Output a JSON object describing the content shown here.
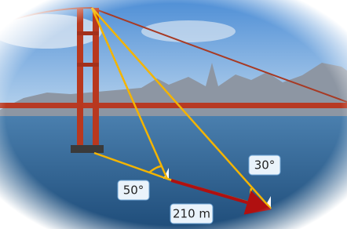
{
  "labels": {
    "angle_left": "50°",
    "angle_right": "30°",
    "distance": "210 m"
  }
}
